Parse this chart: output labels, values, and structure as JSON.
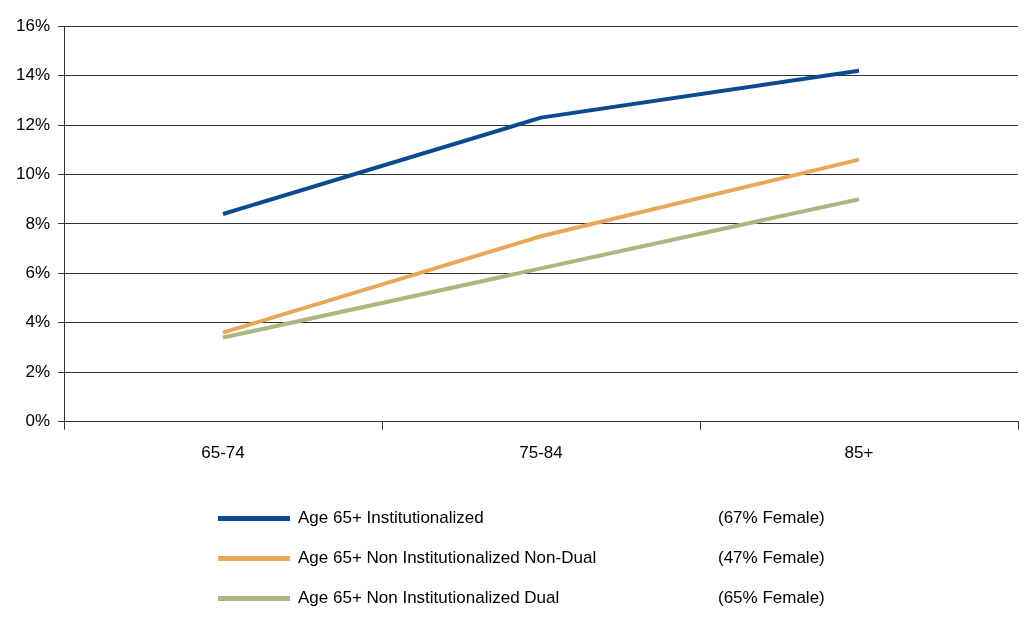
{
  "chart_data": {
    "type": "line",
    "categories": [
      "65-74",
      "75-84",
      "85+"
    ],
    "series": [
      {
        "name": "Age 65+ Institutionalized",
        "color": "#0b4a8f",
        "values": [
          8.4,
          12.3,
          14.2
        ]
      },
      {
        "name": "Age 65+ Non Institutionalized Non-Dual",
        "color": "#e8a85a",
        "values": [
          3.6,
          7.5,
          10.6
        ]
      },
      {
        "name": "Age 65+ Non Institutionalized Dual",
        "color": "#a9b87f",
        "values": [
          3.4,
          6.2,
          9.0
        ]
      }
    ],
    "annotations": [
      "(67% Female)",
      "(47% Female)",
      "(65% Female)"
    ],
    "ylim": [
      0,
      16
    ],
    "yticks": [
      {
        "value": 0,
        "label": "0%"
      },
      {
        "value": 2,
        "label": "2%"
      },
      {
        "value": 4,
        "label": "4%"
      },
      {
        "value": 6,
        "label": "6%"
      },
      {
        "value": 8,
        "label": "8%"
      },
      {
        "value": 10,
        "label": "10%"
      },
      {
        "value": 12,
        "label": "12%"
      },
      {
        "value": 14,
        "label": "14%"
      },
      {
        "value": 16,
        "label": "16%"
      }
    ],
    "grid": "y",
    "legend": "bottom",
    "marker": "none",
    "line_style": "solid"
  }
}
